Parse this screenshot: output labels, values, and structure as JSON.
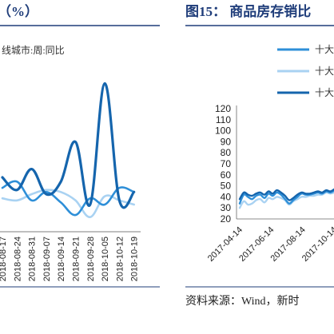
{
  "left_panel": {
    "title": "（%）",
    "legend_label": "线城市:周:同比"
  },
  "right_panel": {
    "title": "图15：  商品房存销比",
    "legend": [
      "十大",
      "十大",
      "十大"
    ]
  },
  "source_text": "资料来源：Wind，新时",
  "colors": {
    "title_blue": "#1f3d7a",
    "rule_blue": "#1f3d7a",
    "series_mid": "#2e8fd8",
    "series_light": "#a9d2f2",
    "series_dark": "#1565ad"
  },
  "chart_data": [
    {
      "type": "line",
      "title": "",
      "x": [
        "2018-08-17",
        "2018-08-24",
        "2018-08-31",
        "2018-09-07",
        "2018-09-14",
        "2018-09-21",
        "2018-09-28",
        "2018-10-05",
        "2018-10-12",
        "2018-10-19"
      ],
      "series": [
        {
          "name": "线城市:周:同比",
          "color": "#1565ad",
          "values": [
            8,
            2,
            12,
            0,
            6,
            25,
            -5,
            53,
            -3,
            1
          ]
        },
        {
          "color": "#2e8fd8",
          "values": [
            3,
            6,
            -3,
            1,
            -4,
            -10,
            -2,
            -5,
            3,
            1
          ]
        },
        {
          "color": "#a9d2f2",
          "values": [
            -2,
            -3,
            0,
            2,
            1,
            -3,
            -11,
            -1,
            -3,
            -5
          ]
        }
      ],
      "ylim": [
        -18,
        70
      ]
    },
    {
      "type": "line",
      "title": "图15：  商品房存销比",
      "y_ticks": [
        20,
        30,
        40,
        50,
        60,
        70,
        80,
        90,
        100,
        110,
        120
      ],
      "x_ticks": [
        "2017-04-14",
        "2017-06-14",
        "2017-08-14",
        "2017-10-14"
      ],
      "ylim": [
        20,
        120
      ],
      "series": [
        {
          "name": "十大",
          "color": "#2e8fd8",
          "x": [
            "2017-04-14",
            "2017-04-22",
            "2017-04-30",
            "2017-05-08",
            "2017-05-16",
            "2017-05-24",
            "2017-06-01",
            "2017-06-09",
            "2017-06-17",
            "2017-06-25",
            "2017-07-03",
            "2017-07-11",
            "2017-07-19",
            "2017-07-27",
            "2017-08-04",
            "2017-08-12",
            "2017-08-20",
            "2017-08-28",
            "2017-09-05",
            "2017-09-13",
            "2017-09-21",
            "2017-09-29",
            "2017-10-07",
            "2017-10-15",
            "2017-10-23",
            "2017-10-31"
          ],
          "values": [
            34,
            42,
            40,
            38,
            41,
            42,
            39,
            43,
            41,
            44,
            42,
            38,
            34,
            37,
            40,
            43,
            42,
            42,
            43,
            44,
            43,
            45,
            44,
            46,
            45,
            46
          ]
        },
        {
          "name": "十大",
          "color": "#a9d2f2",
          "x": [
            "2017-04-14",
            "2017-04-22",
            "2017-04-30",
            "2017-05-08",
            "2017-05-16",
            "2017-05-24",
            "2017-06-01",
            "2017-06-09",
            "2017-06-17",
            "2017-06-25",
            "2017-07-03",
            "2017-07-11",
            "2017-07-19",
            "2017-07-27",
            "2017-08-04",
            "2017-08-12",
            "2017-08-20",
            "2017-08-28",
            "2017-09-05",
            "2017-09-13",
            "2017-09-21",
            "2017-09-29",
            "2017-10-07",
            "2017-10-15",
            "2017-10-23",
            "2017-10-31"
          ],
          "values": [
            30,
            36,
            33,
            34,
            37,
            38,
            35,
            39,
            38,
            40,
            39,
            37,
            33,
            36,
            38,
            40,
            40,
            41,
            41,
            42,
            42,
            44,
            43,
            44,
            44,
            45
          ]
        },
        {
          "name": "十大",
          "color": "#1565ad",
          "x": [
            "2017-04-14",
            "2017-04-22",
            "2017-04-30",
            "2017-05-08",
            "2017-05-16",
            "2017-05-24",
            "2017-06-01",
            "2017-06-09",
            "2017-06-17",
            "2017-06-25",
            "2017-07-03",
            "2017-07-11",
            "2017-07-19",
            "2017-07-27",
            "2017-08-04",
            "2017-08-12",
            "2017-08-20",
            "2017-08-28",
            "2017-09-05",
            "2017-09-13",
            "2017-09-21",
            "2017-09-29",
            "2017-10-07",
            "2017-10-15",
            "2017-10-23",
            "2017-10-31"
          ],
          "values": [
            38,
            44,
            42,
            41,
            43,
            44,
            42,
            45,
            43,
            46,
            44,
            41,
            37,
            39,
            42,
            44,
            43,
            43,
            44,
            45,
            44,
            46,
            45,
            47,
            46,
            47
          ]
        }
      ]
    }
  ]
}
